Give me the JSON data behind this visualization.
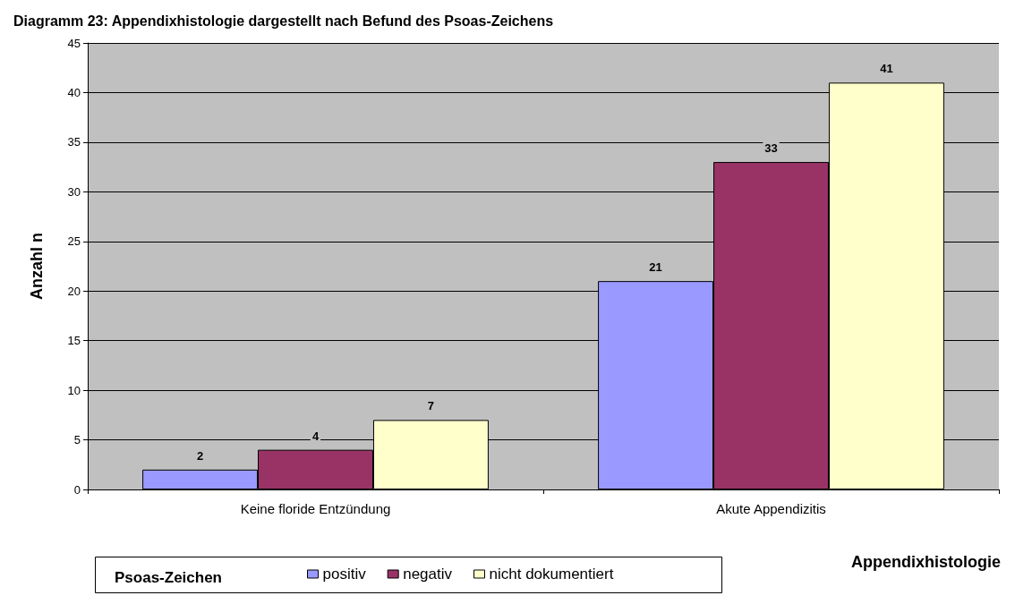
{
  "chart_data": {
    "type": "bar",
    "title": "Diagramm 23: Appendixhistologie dargestellt nach Befund des Psoas-Zeichens",
    "xlabel": "Appendixhistologie",
    "ylabel": "Anzahl n",
    "legend_title": "Psoas-Zeichen",
    "categories": [
      "Keine floride Entzündung",
      "Akute Appendizitis"
    ],
    "series": [
      {
        "name": "positiv",
        "color": "#9999ff",
        "values": [
          2,
          21
        ]
      },
      {
        "name": "negativ",
        "color": "#993366",
        "values": [
          4,
          33
        ]
      },
      {
        "name": "nicht dokumentiert",
        "color": "#ffffcc",
        "values": [
          7,
          41
        ]
      }
    ],
    "ylim": [
      0,
      45
    ],
    "yticks": [
      0,
      5,
      10,
      15,
      20,
      25,
      30,
      35,
      40,
      45
    ],
    "grid": "y",
    "legend": "bottom left",
    "data_labels": true
  }
}
